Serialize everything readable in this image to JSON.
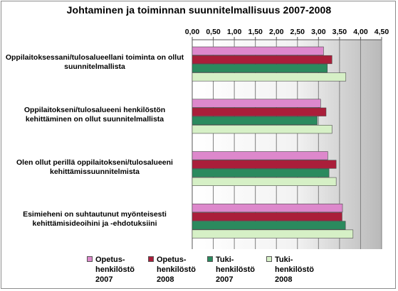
{
  "chart_data": {
    "type": "bar",
    "orientation": "horizontal",
    "title": "Johtaminen ja toiminnan suunnitelmallisuus  2007-2008",
    "xlim": [
      0,
      4.5
    ],
    "xticks": [
      "0,00",
      "0,50",
      "1,00",
      "1,50",
      "2,00",
      "2,50",
      "3,00",
      "3,50",
      "4,00",
      "4,50"
    ],
    "axis_position": "top",
    "grid": true,
    "legend_position": "bottom",
    "categories": [
      "Oppilaitoksessani/tulosalueellani toiminta on ollut suunnitelmallista",
      "Oppilaitokseni/tulosalueeni henkilöstön kehittäminen on ollut suunnitelmallista",
      "Olen ollut perillä oppilaitokseni/tulosalueeni kehittämissuunnitelmista",
      "Esimieheni on suhtautunut myönteisesti kehittämisideoihini ja -ehdotuksiini"
    ],
    "series": [
      {
        "name": "Opetus-henkilöstö 2007",
        "color": "#dd88cc",
        "values": [
          3.12,
          3.05,
          3.22,
          3.57
        ]
      },
      {
        "name": "Opetus-henkilöstö 2008",
        "color": "#aa1e3a",
        "values": [
          3.32,
          3.18,
          3.42,
          3.56
        ]
      },
      {
        "name": "Tuki-henkilöstö 2007",
        "color": "#2b8a5e",
        "values": [
          3.21,
          2.97,
          3.25,
          3.64
        ]
      },
      {
        "name": "Tuki-henkilöstö 2008",
        "color": "#d6f0c6",
        "values": [
          3.65,
          3.32,
          3.42,
          3.82
        ]
      }
    ]
  },
  "category_label_lines": [
    [
      "Oppilaitoksessani/tulosalueellani toiminta on ollut",
      "suunnitelmallista"
    ],
    [
      "Oppilaitokseni/tulosalueeni henkilöstön",
      "kehittäminen on ollut suunnitelmallista"
    ],
    [
      "Olen ollut perillä oppilaitokseni/tulosalueeni",
      "kehittämissuunnitelmista"
    ],
    [
      "Esimieheni on suhtautunut myönteisesti",
      "kehittämisideoihini ja -ehdotuksiini"
    ]
  ],
  "legend_labels": [
    "Opetus-\nhenkilöstö\n2007",
    "Opetus-\nhenkilöstö\n2008",
    "Tuki-\nhenkilöstö\n2007",
    "Tuki-\nhenkilöstö\n2008"
  ]
}
